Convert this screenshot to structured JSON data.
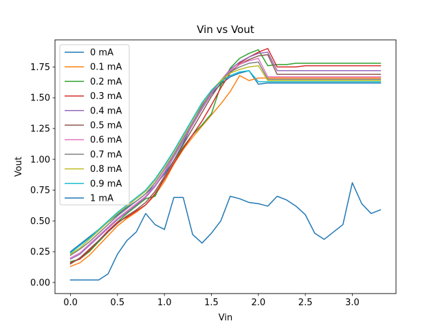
{
  "chart_data": {
    "type": "line",
    "title": "Vin vs Vout",
    "xlabel": "Vin",
    "ylabel": "Vout",
    "xlim": [
      -0.165,
      3.465
    ],
    "ylim": [
      -0.09,
      1.97
    ],
    "xticks": [
      0.0,
      0.5,
      1.0,
      1.5,
      2.0,
      2.5,
      3.0
    ],
    "xtick_labels": [
      "0.0",
      "0.5",
      "1.0",
      "1.5",
      "2.0",
      "2.5",
      "3.0"
    ],
    "yticks": [
      0.0,
      0.25,
      0.5,
      0.75,
      1.0,
      1.25,
      1.5,
      1.75
    ],
    "ytick_labels": [
      "0.00",
      "0.25",
      "0.50",
      "0.75",
      "1.00",
      "1.25",
      "1.50",
      "1.75"
    ],
    "grid": false,
    "legend_position": "top-left",
    "x": [
      0.0,
      0.1,
      0.2,
      0.3,
      0.4,
      0.5,
      0.6,
      0.7,
      0.8,
      0.9,
      1.0,
      1.1,
      1.2,
      1.3,
      1.4,
      1.5,
      1.6,
      1.7,
      1.8,
      1.9,
      2.0,
      2.1,
      2.2,
      2.3,
      2.4,
      2.5,
      2.6,
      2.7,
      2.8,
      2.9,
      3.0,
      3.1,
      3.2,
      3.3
    ],
    "series": [
      {
        "name": "0 mA",
        "color": "#1f77b4",
        "values": [
          0.25,
          0.31,
          0.37,
          0.43,
          0.49,
          0.55,
          0.61,
          0.66,
          0.72,
          0.79,
          0.88,
          0.99,
          1.13,
          1.29,
          1.44,
          1.53,
          1.61,
          1.67,
          1.7,
          1.72,
          1.61,
          1.62,
          1.62,
          1.62,
          1.62,
          1.62,
          1.62,
          1.62,
          1.62,
          1.62,
          1.62,
          1.62,
          1.62,
          1.62
        ]
      },
      {
        "name": "0.1 mA",
        "color": "#ff7f0e",
        "values": [
          0.13,
          0.16,
          0.22,
          0.3,
          0.38,
          0.46,
          0.52,
          0.57,
          0.63,
          0.71,
          0.82,
          0.96,
          1.08,
          1.18,
          1.27,
          1.36,
          1.45,
          1.55,
          1.68,
          1.64,
          1.66,
          1.66,
          1.66,
          1.66,
          1.66,
          1.66,
          1.66,
          1.66,
          1.66,
          1.66,
          1.66,
          1.66,
          1.66,
          1.66
        ]
      },
      {
        "name": "0.2 mA",
        "color": "#2ca02c",
        "values": [
          0.17,
          0.19,
          0.25,
          0.33,
          0.41,
          0.49,
          0.56,
          0.62,
          0.68,
          0.7,
          0.86,
          0.99,
          1.1,
          1.2,
          1.28,
          1.37,
          1.6,
          1.74,
          1.82,
          1.86,
          1.89,
          1.76,
          1.77,
          1.77,
          1.78,
          1.78,
          1.78,
          1.78,
          1.78,
          1.78,
          1.78,
          1.78,
          1.78,
          1.78
        ]
      },
      {
        "name": "0.3 mA",
        "color": "#d62728",
        "values": [
          0.16,
          0.19,
          0.26,
          0.34,
          0.42,
          0.49,
          0.53,
          0.58,
          0.63,
          0.72,
          0.84,
          0.97,
          1.09,
          1.2,
          1.31,
          1.44,
          1.58,
          1.7,
          1.78,
          1.83,
          1.87,
          1.9,
          1.75,
          1.75,
          1.75,
          1.76,
          1.76,
          1.76,
          1.76,
          1.76,
          1.76,
          1.76,
          1.76,
          1.76
        ]
      },
      {
        "name": "0.4 mA",
        "color": "#9467bd",
        "values": [
          0.19,
          0.23,
          0.3,
          0.37,
          0.44,
          0.51,
          0.57,
          0.63,
          0.69,
          0.78,
          0.89,
          1.02,
          1.15,
          1.28,
          1.41,
          1.53,
          1.64,
          1.73,
          1.79,
          1.83,
          1.86,
          1.87,
          1.72,
          1.72,
          1.72,
          1.72,
          1.72,
          1.72,
          1.72,
          1.72,
          1.72,
          1.72,
          1.72,
          1.72
        ]
      },
      {
        "name": "0.5 mA",
        "color": "#8c564b",
        "values": [
          0.15,
          0.2,
          0.27,
          0.34,
          0.41,
          0.48,
          0.54,
          0.59,
          0.65,
          0.74,
          0.86,
          0.99,
          1.12,
          1.25,
          1.38,
          1.51,
          1.62,
          1.71,
          1.77,
          1.81,
          1.84,
          1.85,
          1.69,
          1.69,
          1.69,
          1.69,
          1.69,
          1.69,
          1.69,
          1.69,
          1.69,
          1.69,
          1.69,
          1.69
        ]
      },
      {
        "name": "0.6 mA",
        "color": "#e377c2",
        "values": [
          0.2,
          0.24,
          0.31,
          0.38,
          0.45,
          0.52,
          0.58,
          0.64,
          0.7,
          0.79,
          0.9,
          1.03,
          1.16,
          1.29,
          1.42,
          1.54,
          1.64,
          1.72,
          1.77,
          1.8,
          1.82,
          1.67,
          1.67,
          1.67,
          1.67,
          1.67,
          1.67,
          1.67,
          1.67,
          1.67,
          1.67,
          1.67,
          1.67,
          1.67
        ]
      },
      {
        "name": "0.7 mA",
        "color": "#7f7f7f",
        "values": [
          0.22,
          0.27,
          0.33,
          0.4,
          0.47,
          0.54,
          0.6,
          0.66,
          0.72,
          0.81,
          0.92,
          1.04,
          1.17,
          1.3,
          1.43,
          1.55,
          1.64,
          1.71,
          1.75,
          1.78,
          1.79,
          1.65,
          1.65,
          1.65,
          1.65,
          1.65,
          1.65,
          1.65,
          1.65,
          1.65,
          1.65,
          1.65,
          1.65,
          1.65
        ]
      },
      {
        "name": "0.8 mA",
        "color": "#bcbd22",
        "values": [
          0.23,
          0.28,
          0.35,
          0.42,
          0.49,
          0.56,
          0.62,
          0.68,
          0.74,
          0.83,
          0.94,
          1.06,
          1.19,
          1.32,
          1.45,
          1.56,
          1.64,
          1.7,
          1.73,
          1.75,
          1.76,
          1.64,
          1.64,
          1.64,
          1.64,
          1.64,
          1.64,
          1.64,
          1.64,
          1.64,
          1.64,
          1.64,
          1.64,
          1.64
        ]
      },
      {
        "name": "0.9 mA",
        "color": "#17becf",
        "values": [
          0.24,
          0.3,
          0.36,
          0.43,
          0.5,
          0.57,
          0.63,
          0.69,
          0.75,
          0.84,
          0.95,
          1.07,
          1.2,
          1.33,
          1.46,
          1.56,
          1.63,
          1.68,
          1.71,
          1.72,
          1.63,
          1.63,
          1.63,
          1.63,
          1.63,
          1.63,
          1.63,
          1.63,
          1.63,
          1.63,
          1.63,
          1.63,
          1.63,
          1.63
        ]
      },
      {
        "name": "1 mA",
        "color": "#1f77b4",
        "values": [
          0.02,
          0.02,
          0.02,
          0.02,
          0.07,
          0.23,
          0.34,
          0.41,
          0.56,
          0.47,
          0.43,
          0.69,
          0.69,
          0.39,
          0.32,
          0.4,
          0.5,
          0.7,
          0.68,
          0.65,
          0.64,
          0.62,
          0.7,
          0.67,
          0.62,
          0.55,
          0.4,
          0.35,
          0.41,
          0.47,
          0.81,
          0.64,
          0.56,
          0.59
        ]
      }
    ]
  }
}
